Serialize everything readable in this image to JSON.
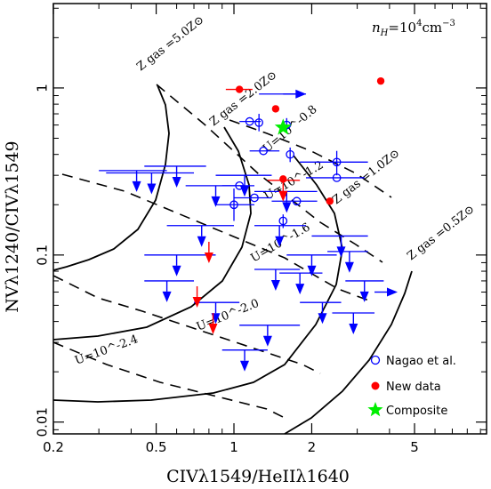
{
  "chart_data": {
    "type": "scatter",
    "xscale": "log",
    "yscale": "log",
    "xlim": [
      0.2,
      9.5
    ],
    "ylim": [
      0.0085,
      3.2
    ],
    "xlabel": "CIVλ1549/HeIIλ1640",
    "ylabel": "NVλ1240/CIVλ1549",
    "x_ticks": [
      {
        "value": 0.2,
        "label": "0.2"
      },
      {
        "value": 0.5,
        "label": "0.5"
      },
      {
        "value": 1,
        "label": "1"
      },
      {
        "value": 2,
        "label": "2"
      },
      {
        "value": 5,
        "label": "5"
      }
    ],
    "y_ticks": [
      {
        "value": 0.01,
        "label": "0.01"
      },
      {
        "value": 0.1,
        "label": "0.1"
      },
      {
        "value": 1,
        "label": "1"
      }
    ],
    "annotation_density": "n_H=10^4cm^-3",
    "metallicity_labels": [
      "Z gas =5.0Z⊙",
      "Z gas =2.0Z⊙",
      "Z gas =1.0Z⊙",
      "Z gas =0.5Z⊙"
    ],
    "ionization_labels": [
      "U=10^-0.8",
      "U=10^-1.2",
      "U=10^-1.6",
      "U=10^-2.0",
      "U=10^-2.4"
    ],
    "colors": {
      "nagao": "#0000ff",
      "new": "#ff0000",
      "composite": "#00ee00",
      "model": "#000000"
    },
    "legend": [
      {
        "label": "Nagao et al.",
        "marker": "open-circle"
      },
      {
        "label": "New data",
        "marker": "filled-circle"
      },
      {
        "label": "Composite",
        "marker": "star"
      }
    ],
    "series": [
      {
        "name": "Nagao et al.",
        "points": [
          {
            "x": 1.55,
            "y": 0.92,
            "xerr": [
              1.25,
              1.9
            ],
            "limit": "lower-x"
          },
          {
            "x": 1.15,
            "y": 0.63,
            "xerr": [
              1.05,
              1.27
            ]
          },
          {
            "x": 1.25,
            "y": 0.62,
            "yerr": [
              0.55,
              0.7
            ]
          },
          {
            "x": 1.6,
            "y": 0.6,
            "yerr": [
              0.54,
              0.66
            ]
          },
          {
            "x": 1.3,
            "y": 0.42,
            "xerr": [
              1.15,
              1.5
            ]
          },
          {
            "x": 1.65,
            "y": 0.4,
            "yerr": [
              0.36,
              0.44
            ]
          },
          {
            "x": 2.5,
            "y": 0.36,
            "xerr": [
              1.8,
              3.3
            ],
            "yerr": [
              0.3,
              0.42
            ]
          },
          {
            "x": 2.5,
            "y": 0.29,
            "xerr": [
              1.9,
              3.2
            ]
          },
          {
            "x": 1.05,
            "y": 0.26,
            "xerr": [
              0.9,
              1.2
            ]
          },
          {
            "x": 1.0,
            "y": 0.2,
            "xerr": [
              0.85,
              1.2
            ],
            "yerr": [
              0.16,
              0.25
            ]
          },
          {
            "x": 1.2,
            "y": 0.22,
            "xerr": [
              1.0,
              1.4
            ]
          },
          {
            "x": 1.75,
            "y": 0.21,
            "xerr": [
              1.4,
              2.1
            ]
          },
          {
            "x": 1.55,
            "y": 0.16,
            "yerr": [
              0.145,
              0.175
            ]
          },
          {
            "x": 0.42,
            "y": 0.32,
            "xerr": [
              0.3,
              0.55
            ],
            "limit": "upper-y"
          },
          {
            "x": 0.6,
            "y": 0.34,
            "xerr": [
              0.45,
              0.78
            ],
            "limit": "upper-y"
          },
          {
            "x": 0.48,
            "y": 0.31,
            "xerr": [
              0.32,
              0.7
            ],
            "limit": "upper-y"
          },
          {
            "x": 1.1,
            "y": 0.3,
            "xerr": [
              0.85,
              1.4
            ],
            "limit": "upper-y"
          },
          {
            "x": 0.85,
            "y": 0.26,
            "xerr": [
              0.65,
              1.1
            ],
            "limit": "upper-y"
          },
          {
            "x": 1.6,
            "y": 0.24,
            "xerr": [
              1.2,
              2.1
            ],
            "limit": "upper-y"
          },
          {
            "x": 0.75,
            "y": 0.15,
            "xerr": [
              0.55,
              1.0
            ],
            "limit": "upper-y"
          },
          {
            "x": 1.5,
            "y": 0.15,
            "xerr": [
              1.2,
              1.9
            ],
            "limit": "upper-y"
          },
          {
            "x": 0.6,
            "y": 0.1,
            "xerr": [
              0.45,
              0.85
            ],
            "limit": "upper-y"
          },
          {
            "x": 1.45,
            "y": 0.082,
            "xerr": [
              1.2,
              1.8
            ],
            "limit": "upper-y"
          },
          {
            "x": 2.6,
            "y": 0.13,
            "xerr": [
              2.0,
              3.3
            ],
            "limit": "upper-y"
          },
          {
            "x": 2.0,
            "y": 0.1,
            "xerr": [
              1.6,
              2.5
            ],
            "limit": "upper-y"
          },
          {
            "x": 2.8,
            "y": 0.105,
            "xerr": [
              2.3,
              3.3
            ],
            "limit": "upper-y"
          },
          {
            "x": 1.8,
            "y": 0.078,
            "xerr": [
              1.5,
              2.2
            ],
            "limit": "upper-y"
          },
          {
            "x": 0.55,
            "y": 0.07,
            "xerr": [
              0.45,
              0.7
            ],
            "limit": "upper-y"
          },
          {
            "x": 0.85,
            "y": 0.052,
            "xerr": [
              0.7,
              1.05
            ],
            "limit": "upper-y"
          },
          {
            "x": 1.35,
            "y": 0.038,
            "xerr": [
              1.05,
              1.8
            ],
            "limit": "upper-y"
          },
          {
            "x": 1.1,
            "y": 0.027,
            "xerr": [
              0.9,
              1.35
            ],
            "limit": "upper-y"
          },
          {
            "x": 2.2,
            "y": 0.052,
            "xerr": [
              1.8,
              2.6
            ],
            "limit": "upper-y"
          },
          {
            "x": 2.9,
            "y": 0.045,
            "xerr": [
              2.4,
              3.5
            ],
            "limit": "upper-y"
          },
          {
            "x": 3.2,
            "y": 0.07,
            "xerr": [
              2.7,
              3.8
            ],
            "limit": "upper-y"
          },
          {
            "x": 3.5,
            "y": 0.06,
            "limit": "lower-x"
          }
        ]
      },
      {
        "name": "New data",
        "points": [
          {
            "x": 1.05,
            "y": 0.98,
            "xerr": [
              0.93,
              1.18
            ]
          },
          {
            "x": 1.45,
            "y": 0.75
          },
          {
            "x": 3.7,
            "y": 1.1
          },
          {
            "x": 1.55,
            "y": 0.28,
            "xerr": [
              1.35,
              1.8
            ],
            "limit": "upper-y"
          },
          {
            "x": 1.55,
            "y": 0.285
          },
          {
            "x": 2.35,
            "y": 0.21
          },
          {
            "x": 0.8,
            "y": 0.12,
            "limit": "upper-y"
          },
          {
            "x": 0.72,
            "y": 0.065,
            "limit": "upper-y"
          },
          {
            "x": 0.83,
            "y": 0.045,
            "limit": "upper-y"
          }
        ]
      },
      {
        "name": "Composite",
        "points": [
          {
            "x": 1.55,
            "y": 0.58
          }
        ]
      }
    ]
  }
}
